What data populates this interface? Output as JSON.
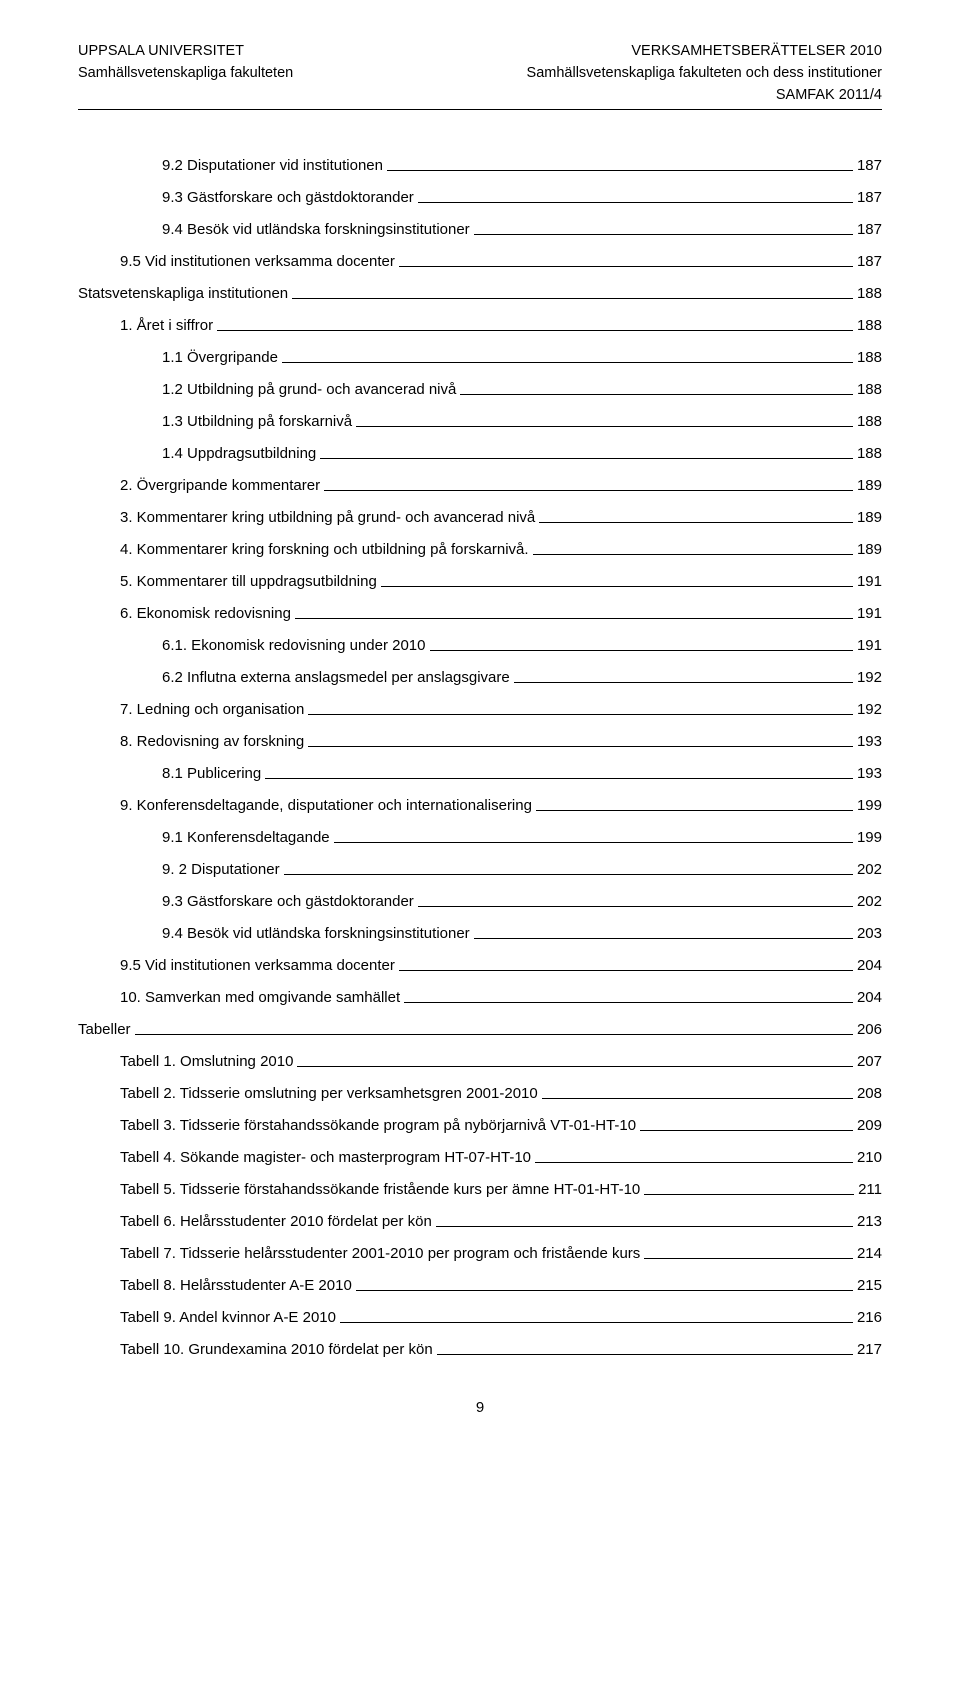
{
  "header": {
    "left_line1": "UPPSALA UNIVERSITET",
    "left_line2": "Samhällsvetenskapliga fakulteten",
    "right_line1": "VERKSAMHETSBERÄTTELSER 2010",
    "right_line2": "Samhällsvetenskapliga fakulteten och dess institutioner",
    "right_line3": "SAMFAK 2011/4"
  },
  "toc": [
    {
      "label": "9.2 Disputationer vid institutionen",
      "page": "187",
      "indent": 2
    },
    {
      "label": "9.3 Gästforskare och gästdoktorander",
      "page": "187",
      "indent": 2
    },
    {
      "label": "9.4 Besök vid utländska forskningsinstitutioner",
      "page": "187",
      "indent": 2
    },
    {
      "label": "9.5 Vid institutionen verksamma docenter",
      "page": "187",
      "indent": 1
    },
    {
      "label": "Statsvetenskapliga institutionen",
      "page": "188",
      "indent": 0
    },
    {
      "label": "1. Året i siffror",
      "page": "188",
      "indent": 1
    },
    {
      "label": "1.1 Övergripande",
      "page": "188",
      "indent": 2
    },
    {
      "label": "1.2 Utbildning på grund- och avancerad nivå",
      "page": "188",
      "indent": 2
    },
    {
      "label": "1.3 Utbildning på forskarnivå",
      "page": "188",
      "indent": 2
    },
    {
      "label": "1.4 Uppdragsutbildning",
      "page": "188",
      "indent": 2
    },
    {
      "label": "2. Övergripande kommentarer",
      "page": "189",
      "indent": 1
    },
    {
      "label": "3. Kommentarer kring utbildning på grund- och avancerad nivå",
      "page": "189",
      "indent": 1
    },
    {
      "label": "4. Kommentarer kring forskning och utbildning på forskarnivå.",
      "page": "189",
      "indent": 1
    },
    {
      "label": "5. Kommentarer till uppdragsutbildning",
      "page": "191",
      "indent": 1
    },
    {
      "label": "6. Ekonomisk redovisning",
      "page": "191",
      "indent": 1
    },
    {
      "label": "6.1. Ekonomisk redovisning under 2010",
      "page": "191",
      "indent": 2
    },
    {
      "label": "6.2 Influtna externa anslagsmedel per anslagsgivare",
      "page": "192",
      "indent": 2
    },
    {
      "label": "7. Ledning och organisation",
      "page": "192",
      "indent": 1
    },
    {
      "label": "8. Redovisning av forskning",
      "page": "193",
      "indent": 1
    },
    {
      "label": "8.1 Publicering",
      "page": "193",
      "indent": 2
    },
    {
      "label": "9. Konferensdeltagande, disputationer och internationalisering",
      "page": "199",
      "indent": 1
    },
    {
      "label": "9.1 Konferensdeltagande",
      "page": "199",
      "indent": 2
    },
    {
      "label": "9. 2 Disputationer",
      "page": "202",
      "indent": 2
    },
    {
      "label": "9.3 Gästforskare och gästdoktorander",
      "page": "202",
      "indent": 2
    },
    {
      "label": "9.4 Besök vid utländska forskningsinstitutioner",
      "page": "203",
      "indent": 2
    },
    {
      "label": "9.5 Vid institutionen verksamma docenter",
      "page": "204",
      "indent": 1
    },
    {
      "label": "10. Samverkan med omgivande samhället",
      "page": "204",
      "indent": 1
    },
    {
      "label": "Tabeller",
      "page": "206",
      "indent": 0
    },
    {
      "label": "Tabell 1. Omslutning 2010",
      "page": "207",
      "indent": 1
    },
    {
      "label": "Tabell 2. Tidsserie omslutning per verksamhetsgren 2001-2010",
      "page": "208",
      "indent": 1
    },
    {
      "label": "Tabell 3. Tidsserie förstahandssökande program på nybörjarnivå VT-01-HT-10",
      "page": "209",
      "indent": 1
    },
    {
      "label": "Tabell 4. Sökande magister- och masterprogram HT-07-HT-10",
      "page": "210",
      "indent": 1
    },
    {
      "label": "Tabell 5. Tidsserie förstahandssökande fristående kurs per ämne HT-01-HT-10",
      "page": "211",
      "indent": 1
    },
    {
      "label": "Tabell 6. Helårsstudenter 2010 fördelat per kön",
      "page": "213",
      "indent": 1
    },
    {
      "label": "Tabell 7. Tidsserie helårsstudenter 2001-2010 per program och fristående kurs",
      "page": "214",
      "indent": 1
    },
    {
      "label": "Tabell 8. Helårsstudenter A-E 2010",
      "page": "215",
      "indent": 1
    },
    {
      "label": "Tabell 9. Andel kvinnor A-E 2010",
      "page": "216",
      "indent": 1
    },
    {
      "label": "Tabell 10. Grundexamina 2010 fördelat per kön",
      "page": "217",
      "indent": 1
    }
  ],
  "footer": {
    "pagenum": "9"
  },
  "toc_gap_before": [
    27
  ]
}
